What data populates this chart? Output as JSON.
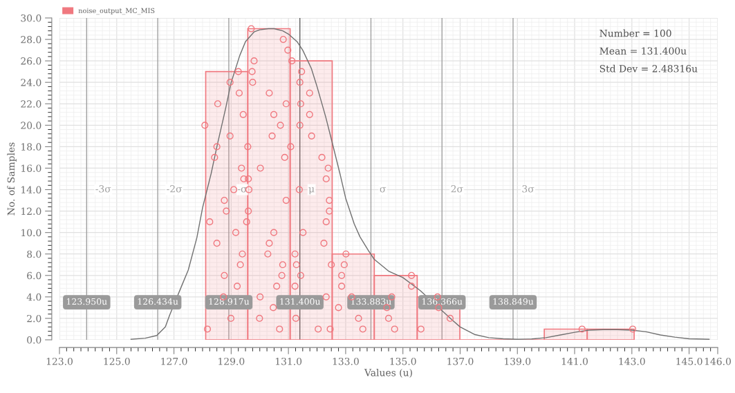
{
  "chart_data": {
    "type": "histogram",
    "xlabel": "Values (u)",
    "ylabel": "No. of Samples",
    "bins": [
      128.11,
      129.58,
      131.06,
      132.53,
      134.0,
      135.5,
      136.99,
      138.47,
      139.94,
      141.44,
      143.08
    ],
    "series": [
      {
        "name": "noise_output_MC_MIS",
        "color": "#f0787f",
        "values": [
          25,
          29,
          26,
          8,
          6,
          4,
          0,
          0,
          1,
          1
        ]
      },
      {
        "type": "scatter",
        "color": "#f0787f",
        "marker": "circle",
        "x": [
          128.08,
          128.53,
          128.5,
          128.42,
          128.96,
          129.25,
          129.28,
          129.42,
          128.96,
          129.36,
          129.44,
          129.09,
          129.7,
          129.8,
          129.73,
          129.75,
          129.58,
          129.6,
          129.62,
          130.02,
          130.33,
          130.49,
          130.43,
          130.72,
          130.82,
          130.98,
          131.12,
          130.92,
          131.08,
          130.87,
          131.46,
          131.4,
          131.74,
          131.43,
          131.74,
          131.4,
          131.81,
          132.17,
          132.39,
          132.32,
          131.38,
          128.76,
          128.83,
          128.25,
          129.16,
          128.5,
          129.39,
          129.32,
          128.76,
          129.21,
          128.73,
          128.99,
          128.17,
          129.6,
          129.54,
          130.49,
          130.33,
          130.28,
          130.8,
          130.77,
          130.59,
          130.01,
          130.47,
          129.99,
          130.69,
          130.92,
          131.23,
          131.28,
          131.43,
          131.23,
          131.26,
          131.51,
          132.04,
          132.43,
          132.43,
          132.32,
          132.24,
          132.5,
          132.32,
          132.46,
          133.01,
          132.95,
          132.86,
          132.86,
          133.21,
          132.75,
          133.45,
          133.6,
          135.3,
          135.3,
          134.61,
          134.44,
          134.5,
          134.71,
          136.21,
          136.25,
          136.65,
          135.63,
          141.26,
          143.03
        ],
        "values": [
          20,
          22,
          18,
          17,
          24,
          25,
          23,
          21,
          19,
          16,
          15,
          14,
          29,
          26,
          25,
          24,
          18,
          15,
          14,
          16,
          23,
          21,
          19,
          20,
          28,
          27,
          26,
          22,
          18,
          17,
          25,
          24,
          23,
          22,
          21,
          20,
          19,
          17,
          16,
          15,
          14,
          13,
          12,
          11,
          10,
          9,
          8,
          7,
          6,
          5,
          4,
          2,
          1,
          12,
          11,
          10,
          9,
          8,
          7,
          6,
          5,
          4,
          3,
          2,
          1,
          13,
          8,
          7,
          6,
          5,
          2,
          10,
          1,
          13,
          12,
          11,
          9,
          7,
          4,
          1,
          8,
          7,
          6,
          5,
          4,
          3,
          2,
          1,
          6,
          5,
          4,
          3,
          2,
          1,
          4,
          3,
          2,
          1,
          1,
          1
        ]
      },
      {
        "type": "line",
        "color": "#707070",
        "x": [
          125.5,
          126.0,
          126.4,
          126.7,
          126.85,
          127.25,
          127.5,
          127.8,
          128.0,
          128.3,
          128.5,
          128.8,
          129.0,
          129.3,
          129.5,
          129.8,
          130.0,
          130.3,
          130.5,
          130.8,
          131.0,
          131.3,
          131.5,
          131.8,
          132.0,
          132.3,
          132.5,
          132.8,
          133.0,
          133.3,
          133.5,
          133.8,
          134.0,
          134.5,
          135.0,
          135.6,
          136.7,
          137.0,
          137.5,
          138.0,
          138.5,
          139.0,
          139.5,
          140.0,
          140.5,
          141.0,
          141.5,
          142.0,
          142.5,
          143.0,
          143.5,
          144.0,
          144.5,
          145.0,
          145.7
        ],
        "values": [
          0.05,
          0.15,
          0.4,
          1.2,
          2.3,
          4.9,
          6.5,
          9.5,
          12.3,
          15.5,
          18.0,
          21.5,
          24.0,
          26.5,
          27.8,
          28.7,
          28.9,
          29.0,
          29.0,
          28.8,
          28.5,
          27.8,
          27.0,
          25.3,
          23.6,
          20.8,
          18.7,
          15.5,
          13.2,
          10.8,
          9.6,
          8.3,
          7.5,
          6.4,
          5.8,
          4.6,
          1.9,
          1.2,
          0.5,
          0.2,
          0.1,
          0.05,
          0.08,
          0.2,
          0.45,
          0.7,
          0.9,
          0.95,
          0.95,
          0.9,
          0.75,
          0.45,
          0.25,
          0.1,
          0.05
        ]
      }
    ],
    "xlim": [
      123,
      146
    ],
    "xticks": [
      {
        "value": 123,
        "label": "123.0"
      },
      {
        "value": 125,
        "label": "125.0"
      },
      {
        "value": 127,
        "label": "127.0"
      },
      {
        "value": 129,
        "label": "129.0"
      },
      {
        "value": 131,
        "label": "131.0"
      },
      {
        "value": 133,
        "label": "133.0"
      },
      {
        "value": 135,
        "label": "135.0"
      },
      {
        "value": 137,
        "label": "137.0"
      },
      {
        "value": 139,
        "label": "139.0"
      },
      {
        "value": 141,
        "label": "141.0"
      },
      {
        "value": 143,
        "label": "143.0"
      },
      {
        "value": 145,
        "label": "145.0"
      },
      {
        "value": 146,
        "label": "146.0"
      }
    ],
    "ylim": [
      0,
      30
    ],
    "yticks": [
      {
        "value": 0,
        "label": "0.0"
      },
      {
        "value": 2,
        "label": "2.0"
      },
      {
        "value": 4,
        "label": "4.0"
      },
      {
        "value": 6,
        "label": "6.0"
      },
      {
        "value": 8,
        "label": "8.0"
      },
      {
        "value": 10,
        "label": "10.0"
      },
      {
        "value": 12,
        "label": "12.0"
      },
      {
        "value": 14,
        "label": "14.0"
      },
      {
        "value": 16,
        "label": "16.0"
      },
      {
        "value": 18,
        "label": "18.0"
      },
      {
        "value": 20,
        "label": "20.0"
      },
      {
        "value": 22,
        "label": "22.0"
      },
      {
        "value": 24,
        "label": "24.0"
      },
      {
        "value": 26,
        "label": "26.0"
      },
      {
        "value": 28,
        "label": "28.0"
      },
      {
        "value": 30,
        "label": "30.0"
      }
    ],
    "ref_lines": [
      {
        "axis": "x",
        "value": 123.95,
        "label": "123.950u",
        "color": "#a0a0a0"
      },
      {
        "axis": "x",
        "value": 126.434,
        "label": "126.434u",
        "color": "#a0a0a0"
      },
      {
        "axis": "x",
        "value": 128.917,
        "label": "128.917u",
        "color": "#a0a0a0"
      },
      {
        "axis": "x",
        "value": 131.4,
        "label": "131.400u",
        "color": "#606060"
      },
      {
        "axis": "x",
        "value": 133.883,
        "label": "133.883u",
        "color": "#a0a0a0"
      },
      {
        "axis": "x",
        "value": 136.366,
        "label": "136.366u",
        "color": "#a0a0a0"
      },
      {
        "axis": "x",
        "value": 138.849,
        "label": "138.849u",
        "color": "#a0a0a0"
      }
    ],
    "annotations": [
      {
        "text": "-3σ",
        "x": 123.95,
        "y": 14
      },
      {
        "text": "-2σ",
        "x": 126.434,
        "y": 14
      },
      {
        "text": "-σ",
        "x": 128.917,
        "y": 14
      },
      {
        "text": "μ",
        "x": 131.4,
        "y": 14
      },
      {
        "text": "σ",
        "x": 133.883,
        "y": 14
      },
      {
        "text": "2σ",
        "x": 136.366,
        "y": 14
      },
      {
        "text": "3σ",
        "x": 138.849,
        "y": 14
      },
      "Number = 100",
      "Mean = 131.400u",
      "Std Dev = 2.48316u"
    ],
    "grid": true,
    "legend": "top left"
  }
}
